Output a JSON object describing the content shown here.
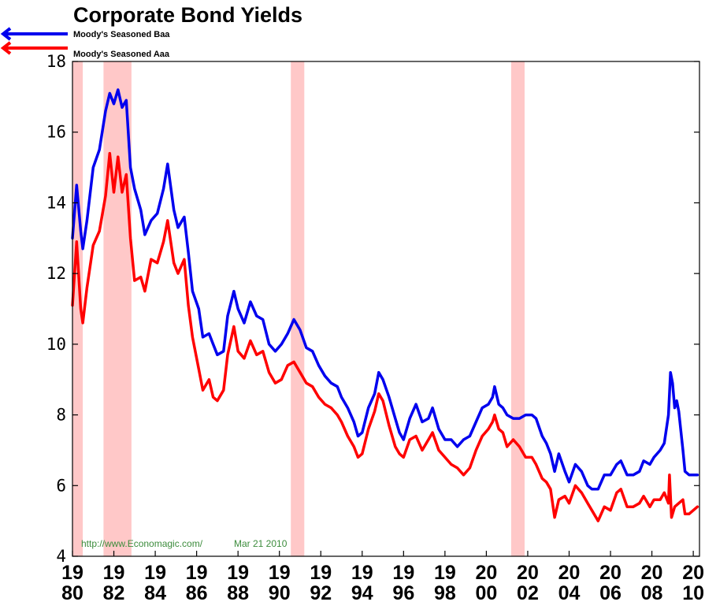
{
  "chart_data": {
    "type": "line",
    "title": "Corporate Bond Yields",
    "ylim": [
      4,
      18
    ],
    "yticks": [
      "4",
      "6",
      "8",
      "10",
      "12",
      "14",
      "16",
      "18"
    ],
    "xlim": [
      1980,
      2010.3
    ],
    "xticks": [
      {
        "x": 1980,
        "top": "19",
        "bottom": "80"
      },
      {
        "x": 1982,
        "top": "19",
        "bottom": "82"
      },
      {
        "x": 1984,
        "top": "19",
        "bottom": "84"
      },
      {
        "x": 1986,
        "top": "19",
        "bottom": "86"
      },
      {
        "x": 1988,
        "top": "19",
        "bottom": "88"
      },
      {
        "x": 1990,
        "top": "19",
        "bottom": "90"
      },
      {
        "x": 1992,
        "top": "19",
        "bottom": "92"
      },
      {
        "x": 1994,
        "top": "19",
        "bottom": "94"
      },
      {
        "x": 1996,
        "top": "19",
        "bottom": "96"
      },
      {
        "x": 1998,
        "top": "19",
        "bottom": "98"
      },
      {
        "x": 2000,
        "top": "20",
        "bottom": "00"
      },
      {
        "x": 2002,
        "top": "20",
        "bottom": "02"
      },
      {
        "x": 2004,
        "top": "20",
        "bottom": "04"
      },
      {
        "x": 2006,
        "top": "20",
        "bottom": "06"
      },
      {
        "x": 2008,
        "top": "20",
        "bottom": "08"
      },
      {
        "x": 2010,
        "top": "20",
        "bottom": "10"
      }
    ],
    "recessions": [
      [
        1980.0,
        1980.5
      ],
      [
        1981.5,
        1982.85
      ],
      [
        1990.55,
        1991.2
      ],
      [
        2001.2,
        2001.85
      ]
    ],
    "series": [
      {
        "name": "Moody's Seasoned Baa",
        "color": "#0000ee",
        "points": [
          [
            1980.0,
            13.0
          ],
          [
            1980.2,
            14.5
          ],
          [
            1980.4,
            13.2
          ],
          [
            1980.5,
            12.7
          ],
          [
            1980.7,
            13.5
          ],
          [
            1981.0,
            15.0
          ],
          [
            1981.3,
            15.5
          ],
          [
            1981.6,
            16.6
          ],
          [
            1981.8,
            17.1
          ],
          [
            1982.0,
            16.8
          ],
          [
            1982.2,
            17.2
          ],
          [
            1982.4,
            16.7
          ],
          [
            1982.6,
            16.9
          ],
          [
            1982.8,
            15.0
          ],
          [
            1983.0,
            14.4
          ],
          [
            1983.3,
            13.8
          ],
          [
            1983.5,
            13.1
          ],
          [
            1983.8,
            13.5
          ],
          [
            1984.1,
            13.7
          ],
          [
            1984.4,
            14.4
          ],
          [
            1984.6,
            15.1
          ],
          [
            1984.9,
            13.8
          ],
          [
            1985.1,
            13.3
          ],
          [
            1985.4,
            13.6
          ],
          [
            1985.6,
            12.6
          ],
          [
            1985.8,
            11.5
          ],
          [
            1986.1,
            11.0
          ],
          [
            1986.3,
            10.2
          ],
          [
            1986.6,
            10.3
          ],
          [
            1986.8,
            10.0
          ],
          [
            1987.0,
            9.7
          ],
          [
            1987.3,
            9.8
          ],
          [
            1987.5,
            10.8
          ],
          [
            1987.8,
            11.5
          ],
          [
            1988.0,
            11.0
          ],
          [
            1988.3,
            10.6
          ],
          [
            1988.6,
            11.2
          ],
          [
            1988.9,
            10.8
          ],
          [
            1989.2,
            10.7
          ],
          [
            1989.5,
            10.0
          ],
          [
            1989.8,
            9.8
          ],
          [
            1990.1,
            10.0
          ],
          [
            1990.4,
            10.3
          ],
          [
            1990.7,
            10.7
          ],
          [
            1991.0,
            10.4
          ],
          [
            1991.3,
            9.9
          ],
          [
            1991.6,
            9.8
          ],
          [
            1991.9,
            9.4
          ],
          [
            1992.2,
            9.1
          ],
          [
            1992.5,
            8.9
          ],
          [
            1992.8,
            8.8
          ],
          [
            1993.0,
            8.5
          ],
          [
            1993.3,
            8.2
          ],
          [
            1993.6,
            7.8
          ],
          [
            1993.8,
            7.4
          ],
          [
            1994.0,
            7.5
          ],
          [
            1994.3,
            8.2
          ],
          [
            1994.6,
            8.6
          ],
          [
            1994.8,
            9.2
          ],
          [
            1995.0,
            9.0
          ],
          [
            1995.3,
            8.5
          ],
          [
            1995.6,
            7.9
          ],
          [
            1995.8,
            7.5
          ],
          [
            1996.0,
            7.3
          ],
          [
            1996.3,
            7.9
          ],
          [
            1996.6,
            8.3
          ],
          [
            1996.9,
            7.8
          ],
          [
            1997.2,
            7.9
          ],
          [
            1997.4,
            8.2
          ],
          [
            1997.7,
            7.6
          ],
          [
            1998.0,
            7.3
          ],
          [
            1998.3,
            7.3
          ],
          [
            1998.6,
            7.1
          ],
          [
            1998.9,
            7.3
          ],
          [
            1999.2,
            7.4
          ],
          [
            1999.5,
            7.8
          ],
          [
            1999.8,
            8.2
          ],
          [
            2000.1,
            8.3
          ],
          [
            2000.3,
            8.5
          ],
          [
            2000.4,
            8.8
          ],
          [
            2000.6,
            8.3
          ],
          [
            2000.8,
            8.2
          ],
          [
            2001.0,
            8.0
          ],
          [
            2001.3,
            7.9
          ],
          [
            2001.6,
            7.9
          ],
          [
            2001.9,
            8.0
          ],
          [
            2002.2,
            8.0
          ],
          [
            2002.4,
            7.9
          ],
          [
            2002.7,
            7.4
          ],
          [
            2002.9,
            7.2
          ],
          [
            2003.1,
            6.9
          ],
          [
            2003.3,
            6.4
          ],
          [
            2003.5,
            6.9
          ],
          [
            2003.8,
            6.4
          ],
          [
            2004.0,
            6.1
          ],
          [
            2004.3,
            6.6
          ],
          [
            2004.6,
            6.4
          ],
          [
            2004.9,
            6.0
          ],
          [
            2005.1,
            5.9
          ],
          [
            2005.4,
            5.9
          ],
          [
            2005.7,
            6.3
          ],
          [
            2006.0,
            6.3
          ],
          [
            2006.3,
            6.6
          ],
          [
            2006.5,
            6.7
          ],
          [
            2006.8,
            6.3
          ],
          [
            2007.1,
            6.3
          ],
          [
            2007.4,
            6.4
          ],
          [
            2007.6,
            6.7
          ],
          [
            2007.9,
            6.6
          ],
          [
            2008.1,
            6.8
          ],
          [
            2008.4,
            7.0
          ],
          [
            2008.6,
            7.2
          ],
          [
            2008.8,
            8.0
          ],
          [
            2008.9,
            9.2
          ],
          [
            2009.0,
            8.9
          ],
          [
            2009.1,
            8.2
          ],
          [
            2009.2,
            8.4
          ],
          [
            2009.3,
            8.1
          ],
          [
            2009.5,
            7.0
          ],
          [
            2009.6,
            6.4
          ],
          [
            2009.8,
            6.3
          ],
          [
            2010.0,
            6.3
          ],
          [
            2010.2,
            6.3
          ]
        ]
      },
      {
        "name": "Moody's Seasoned Aaa",
        "color": "#ff0000",
        "points": [
          [
            1980.0,
            11.1
          ],
          [
            1980.2,
            12.9
          ],
          [
            1980.4,
            11.0
          ],
          [
            1980.5,
            10.6
          ],
          [
            1980.7,
            11.6
          ],
          [
            1981.0,
            12.8
          ],
          [
            1981.3,
            13.2
          ],
          [
            1981.6,
            14.2
          ],
          [
            1981.8,
            15.4
          ],
          [
            1982.0,
            14.3
          ],
          [
            1982.2,
            15.3
          ],
          [
            1982.4,
            14.3
          ],
          [
            1982.6,
            14.8
          ],
          [
            1982.8,
            13.0
          ],
          [
            1983.0,
            11.8
          ],
          [
            1983.3,
            11.9
          ],
          [
            1983.5,
            11.5
          ],
          [
            1983.8,
            12.4
          ],
          [
            1984.1,
            12.3
          ],
          [
            1984.4,
            12.9
          ],
          [
            1984.6,
            13.5
          ],
          [
            1984.9,
            12.3
          ],
          [
            1985.1,
            12.0
          ],
          [
            1985.4,
            12.4
          ],
          [
            1985.6,
            11.1
          ],
          [
            1985.8,
            10.2
          ],
          [
            1986.1,
            9.3
          ],
          [
            1986.3,
            8.7
          ],
          [
            1986.6,
            9.0
          ],
          [
            1986.8,
            8.5
          ],
          [
            1987.0,
            8.4
          ],
          [
            1987.3,
            8.7
          ],
          [
            1987.5,
            9.7
          ],
          [
            1987.8,
            10.5
          ],
          [
            1988.0,
            9.8
          ],
          [
            1988.3,
            9.6
          ],
          [
            1988.6,
            10.1
          ],
          [
            1988.9,
            9.7
          ],
          [
            1989.2,
            9.8
          ],
          [
            1989.5,
            9.2
          ],
          [
            1989.8,
            8.9
          ],
          [
            1990.1,
            9.0
          ],
          [
            1990.4,
            9.4
          ],
          [
            1990.7,
            9.5
          ],
          [
            1991.0,
            9.2
          ],
          [
            1991.3,
            8.9
          ],
          [
            1991.6,
            8.8
          ],
          [
            1991.9,
            8.5
          ],
          [
            1992.2,
            8.3
          ],
          [
            1992.5,
            8.2
          ],
          [
            1992.8,
            8.0
          ],
          [
            1993.0,
            7.8
          ],
          [
            1993.3,
            7.4
          ],
          [
            1993.6,
            7.1
          ],
          [
            1993.8,
            6.8
          ],
          [
            1994.0,
            6.9
          ],
          [
            1994.3,
            7.6
          ],
          [
            1994.6,
            8.1
          ],
          [
            1994.8,
            8.6
          ],
          [
            1995.0,
            8.4
          ],
          [
            1995.3,
            7.7
          ],
          [
            1995.6,
            7.1
          ],
          [
            1995.8,
            6.9
          ],
          [
            1996.0,
            6.8
          ],
          [
            1996.3,
            7.3
          ],
          [
            1996.6,
            7.4
          ],
          [
            1996.9,
            7.0
          ],
          [
            1997.2,
            7.3
          ],
          [
            1997.4,
            7.5
          ],
          [
            1997.7,
            7.0
          ],
          [
            1998.0,
            6.8
          ],
          [
            1998.3,
            6.6
          ],
          [
            1998.6,
            6.5
          ],
          [
            1998.9,
            6.3
          ],
          [
            1999.2,
            6.5
          ],
          [
            1999.5,
            7.0
          ],
          [
            1999.8,
            7.4
          ],
          [
            2000.1,
            7.6
          ],
          [
            2000.3,
            7.8
          ],
          [
            2000.4,
            8.0
          ],
          [
            2000.6,
            7.6
          ],
          [
            2000.8,
            7.5
          ],
          [
            2001.0,
            7.1
          ],
          [
            2001.3,
            7.3
          ],
          [
            2001.6,
            7.1
          ],
          [
            2001.9,
            6.8
          ],
          [
            2002.2,
            6.8
          ],
          [
            2002.4,
            6.6
          ],
          [
            2002.7,
            6.2
          ],
          [
            2002.9,
            6.1
          ],
          [
            2003.1,
            5.9
          ],
          [
            2003.3,
            5.1
          ],
          [
            2003.5,
            5.6
          ],
          [
            2003.8,
            5.7
          ],
          [
            2004.0,
            5.5
          ],
          [
            2004.3,
            6.0
          ],
          [
            2004.6,
            5.8
          ],
          [
            2004.9,
            5.5
          ],
          [
            2005.1,
            5.3
          ],
          [
            2005.4,
            5.0
          ],
          [
            2005.7,
            5.4
          ],
          [
            2006.0,
            5.3
          ],
          [
            2006.3,
            5.8
          ],
          [
            2006.5,
            5.9
          ],
          [
            2006.8,
            5.4
          ],
          [
            2007.1,
            5.4
          ],
          [
            2007.4,
            5.5
          ],
          [
            2007.6,
            5.7
          ],
          [
            2007.9,
            5.4
          ],
          [
            2008.1,
            5.6
          ],
          [
            2008.4,
            5.6
          ],
          [
            2008.6,
            5.8
          ],
          [
            2008.8,
            5.5
          ],
          [
            2008.85,
            6.3
          ],
          [
            2008.95,
            5.1
          ],
          [
            2009.1,
            5.4
          ],
          [
            2009.3,
            5.5
          ],
          [
            2009.5,
            5.6
          ],
          [
            2009.6,
            5.2
          ],
          [
            2009.8,
            5.2
          ],
          [
            2010.0,
            5.3
          ],
          [
            2010.2,
            5.4
          ]
        ]
      }
    ]
  },
  "source_text": "http://www.Economagic.com/",
  "date_text": "Mar 21 2010"
}
